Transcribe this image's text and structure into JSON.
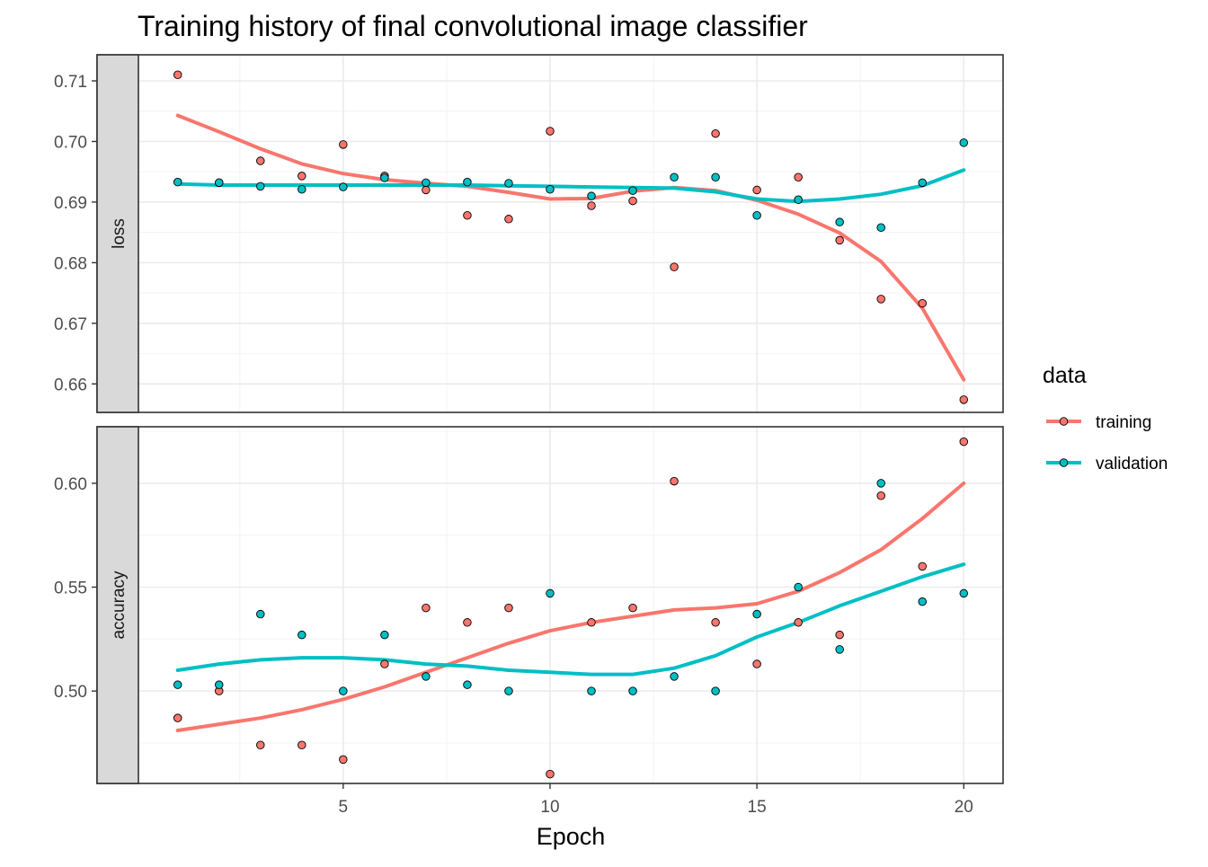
{
  "title": "Training history of final convolutional image classifier",
  "colors": {
    "training": "#F8766D",
    "validation": "#00BFC4",
    "strip_bg": "#D9D9D9",
    "grid_major": "#EBEBEB",
    "grid_minor": "#F5F5F5",
    "axis_text": "#4D4D4D",
    "text": "#000000"
  },
  "chart_data": {
    "type": "scatter",
    "facets": [
      "loss",
      "accuracy"
    ],
    "xlabel": "Epoch",
    "xlim": [
      0.05,
      20.95
    ],
    "x_ticks": [
      5,
      10,
      15,
      20
    ],
    "x": [
      1,
      2,
      3,
      4,
      5,
      6,
      7,
      8,
      9,
      10,
      11,
      12,
      13,
      14,
      15,
      16,
      17,
      18,
      19,
      20
    ],
    "legend": {
      "title": "data",
      "position": "right",
      "entries": [
        "training",
        "validation"
      ]
    },
    "panels": [
      {
        "facet": "loss",
        "ylim": [
          0.6553,
          0.7143
        ],
        "y_ticks": [
          0.66,
          0.67,
          0.68,
          0.69,
          0.7,
          0.71
        ],
        "y_tick_labels": [
          "0.66",
          "0.67",
          "0.68",
          "0.69",
          "0.70",
          "0.71"
        ],
        "series": [
          {
            "name": "training",
            "values": [
              0.711,
              0.6932,
              0.6968,
              0.6943,
              0.6995,
              0.6943,
              0.692,
              0.6878,
              0.6872,
              0.7017,
              0.6894,
              0.6902,
              0.6793,
              0.7013,
              0.692,
              0.6941,
              0.6837,
              0.674,
              0.6733,
              0.6574
            ],
            "smooth": [
              0.7043,
              0.7016,
              0.6988,
              0.6963,
              0.6947,
              0.6937,
              0.6931,
              0.6926,
              0.6916,
              0.6905,
              0.6906,
              0.6918,
              0.6924,
              0.6919,
              0.6903,
              0.688,
              0.6849,
              0.6802,
              0.6725,
              0.6607
            ]
          },
          {
            "name": "validation",
            "values": [
              0.6933,
              0.6932,
              0.6926,
              0.6921,
              0.6925,
              0.694,
              0.6932,
              0.6933,
              0.6931,
              0.6921,
              0.691,
              0.6919,
              0.6941,
              0.6941,
              0.6878,
              0.6904,
              0.6867,
              0.6858,
              0.6932,
              0.6998
            ],
            "smooth": [
              0.693,
              0.6928,
              0.6928,
              0.6928,
              0.6928,
              0.6928,
              0.6928,
              0.6928,
              0.6927,
              0.6926,
              0.6925,
              0.6924,
              0.6923,
              0.6917,
              0.6905,
              0.6901,
              0.6905,
              0.6913,
              0.6927,
              0.6953
            ]
          }
        ]
      },
      {
        "facet": "accuracy",
        "ylim": [
          0.4555,
          0.6272
        ],
        "y_ticks": [
          0.5,
          0.55,
          0.6
        ],
        "y_tick_labels": [
          "0.50",
          "0.55",
          "0.60"
        ],
        "series": [
          {
            "name": "training",
            "values": [
              0.487,
              0.5,
              0.474,
              0.474,
              0.467,
              0.513,
              0.54,
              0.533,
              0.54,
              0.46,
              0.533,
              0.54,
              0.601,
              0.533,
              0.513,
              0.533,
              0.527,
              0.594,
              0.56,
              0.62
            ],
            "smooth": [
              0.481,
              0.484,
              0.487,
              0.491,
              0.496,
              0.502,
              0.509,
              0.516,
              0.523,
              0.529,
              0.533,
              0.536,
              0.539,
              0.54,
              0.542,
              0.548,
              0.557,
              0.568,
              0.583,
              0.6
            ]
          },
          {
            "name": "validation",
            "values": [
              0.503,
              0.503,
              0.537,
              0.527,
              0.5,
              0.527,
              0.507,
              0.503,
              0.5,
              0.547,
              0.5,
              0.5,
              0.507,
              0.5,
              0.537,
              0.55,
              0.52,
              0.6,
              0.543,
              0.547
            ],
            "smooth": [
              0.51,
              0.513,
              0.515,
              0.516,
              0.516,
              0.515,
              0.513,
              0.512,
              0.51,
              0.509,
              0.508,
              0.508,
              0.511,
              0.517,
              0.526,
              0.533,
              0.541,
              0.548,
              0.555,
              0.561
            ]
          }
        ]
      }
    ]
  }
}
